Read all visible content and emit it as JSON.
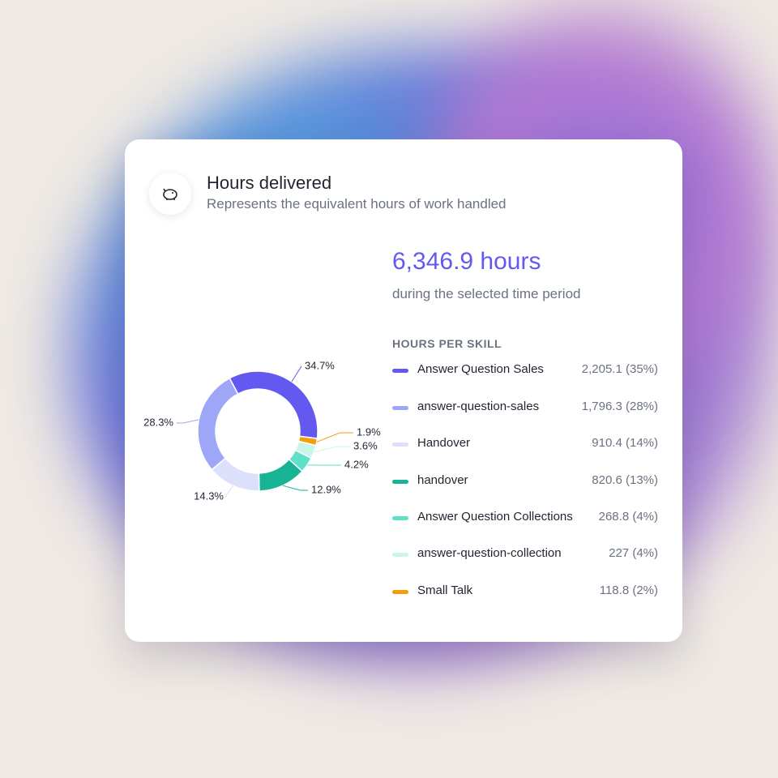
{
  "header": {
    "title": "Hours delivered",
    "subtitle": "Represents the equivalent hours of work handled"
  },
  "summary": {
    "total": "6,346.9 hours",
    "caption": "during the selected time period"
  },
  "legend": {
    "title": "HOURS PER SKILL",
    "rows": [
      {
        "name": "Answer Question Sales",
        "value": "2,205.1 (35%)"
      },
      {
        "name": "answer-question-sales",
        "value": "1,796.3 (28%)"
      },
      {
        "name": "Handover",
        "value": "910.4 (14%)"
      },
      {
        "name": "handover",
        "value": "820.6 (13%)"
      },
      {
        "name": "Answer Question Collections",
        "value": "268.8 (4%)"
      },
      {
        "name": "answer-question-collection",
        "value": "227 (4%)"
      },
      {
        "name": "Small Talk",
        "value": "118.8 (2%)"
      }
    ]
  },
  "chart_data": {
    "type": "pie",
    "categories": [
      "Answer Question Sales",
      "Small Talk",
      "answer-question-collection",
      "Answer Question Collections",
      "handover",
      "Handover",
      "answer-question-sales"
    ],
    "values": [
      34.7,
      1.9,
      3.6,
      4.2,
      12.9,
      14.3,
      28.3
    ],
    "value_labels": [
      "34.7%",
      "1.9%",
      "3.6%",
      "4.2%",
      "12.9%",
      "14.3%",
      "28.3%"
    ],
    "colors": [
      "#6359f0",
      "#f59e0b",
      "#c9f5ea",
      "#5fe0c8",
      "#17b394",
      "#dde0fa",
      "#9ea6f7"
    ]
  }
}
